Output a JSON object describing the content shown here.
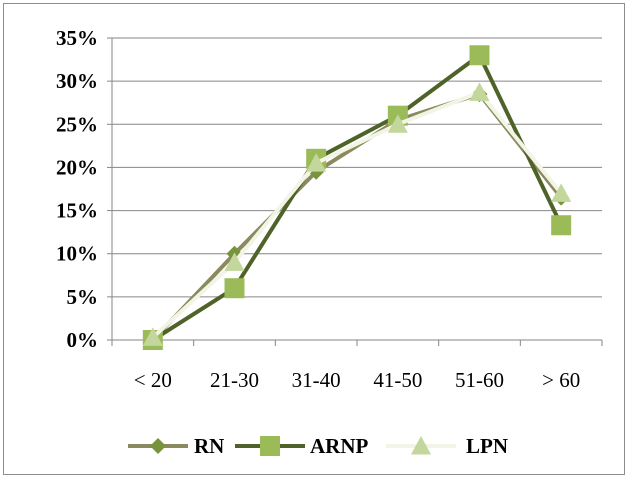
{
  "chart_data": {
    "type": "line",
    "categories": [
      "< 20",
      "21-30",
      "31-40",
      "41-50",
      "51-60",
      "> 60"
    ],
    "y_ticks": [
      "0%",
      "5%",
      "10%",
      "15%",
      "20%",
      "25%",
      "30%",
      "35%"
    ],
    "ylim": [
      0,
      35
    ],
    "grid": true,
    "legend_position": "bottom",
    "series": [
      {
        "name": "RN",
        "values": [
          0,
          10,
          19.5,
          25.5,
          28.5,
          16.5
        ],
        "color": "#8a8a5e",
        "marker": "diamond",
        "marker_color": "#77933c"
      },
      {
        "name": "ARNP",
        "values": [
          0,
          6,
          21,
          26,
          33,
          13.3
        ],
        "color": "#4f6228",
        "marker": "square",
        "marker_color": "#9bbb59"
      },
      {
        "name": "LPN",
        "values": [
          0.3,
          9,
          20.5,
          25,
          28.7,
          17
        ],
        "color": "#f2f5e6",
        "marker": "triangle",
        "marker_color": "#c3d69b"
      }
    ]
  }
}
